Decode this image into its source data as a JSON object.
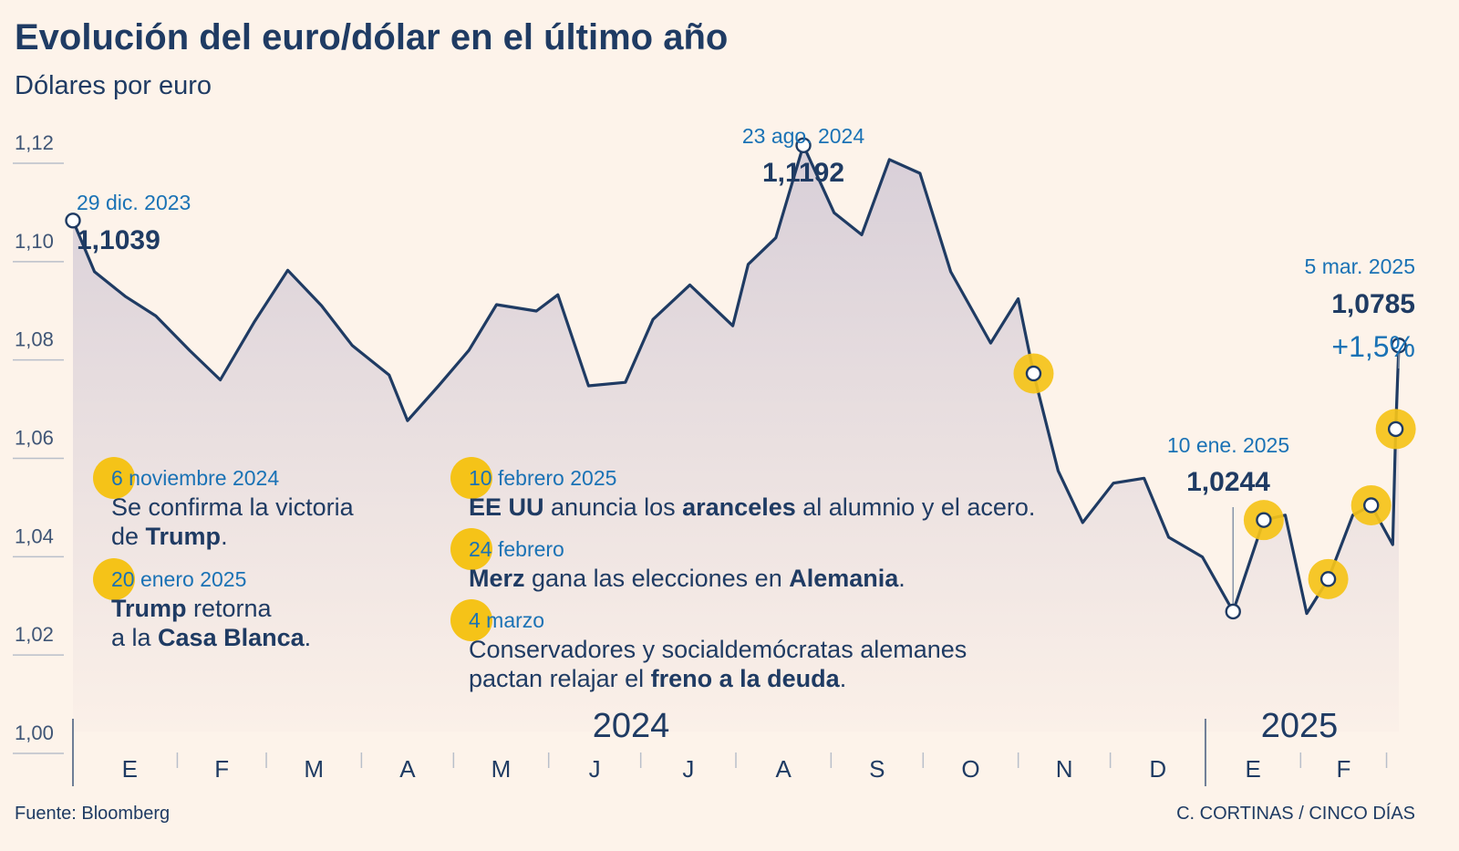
{
  "header": {
    "title": "Evolución del euro/dólar en el último año",
    "subtitle": "Dólares por euro"
  },
  "footer": {
    "source": "Fuente: Bloomberg",
    "credit": "C. CORTINAS / CINCO DÍAS"
  },
  "colors": {
    "background": "#fdf3ea",
    "line": "#1f3b63",
    "accent_blue": "#1a72b5",
    "highlight_yellow": "#f5c318"
  },
  "annotations": {
    "start": {
      "date": "29 dic. 2023",
      "value": "1,1039"
    },
    "max": {
      "date": "23 ago. 2024",
      "value": "1,1192"
    },
    "min": {
      "date": "10 ene. 2025",
      "value": "1,0244"
    },
    "last": {
      "date": "5 mar. 2025",
      "value": "1,0785",
      "change": "+1,5%"
    }
  },
  "events": [
    {
      "date": "6 noviembre 2024",
      "lines": [
        [
          {
            "t": "Se confirma la victoria",
            "b": false
          }
        ],
        [
          {
            "t": "de ",
            "b": false
          },
          {
            "t": "Trump",
            "b": true
          },
          {
            "t": ".",
            "b": false
          }
        ]
      ]
    },
    {
      "date": "20 enero 2025",
      "lines": [
        [
          {
            "t": "Trump",
            "b": true
          },
          {
            "t": " retorna",
            "b": false
          }
        ],
        [
          {
            "t": "a la ",
            "b": false
          },
          {
            "t": "Casa Blanca",
            "b": true
          },
          {
            "t": ".",
            "b": false
          }
        ]
      ]
    },
    {
      "date": "10 febrero 2025",
      "lines": [
        [
          {
            "t": "EE UU",
            "b": true
          },
          {
            "t": " anuncia los ",
            "b": false
          },
          {
            "t": "aranceles",
            "b": true
          },
          {
            "t": " al alumnio y el acero.",
            "b": false
          }
        ]
      ]
    },
    {
      "date": "24 febrero",
      "lines": [
        [
          {
            "t": "Merz",
            "b": true
          },
          {
            "t": " gana las elecciones en ",
            "b": false
          },
          {
            "t": "Alemania",
            "b": true
          },
          {
            "t": ".",
            "b": false
          }
        ]
      ]
    },
    {
      "date": "4 marzo",
      "lines": [
        [
          {
            "t": "Conservadores y socialdemócratas alemanes",
            "b": false
          }
        ],
        [
          {
            "t": "pactan relajar el ",
            "b": false
          },
          {
            "t": "freno a la deuda",
            "b": true
          },
          {
            "t": ".",
            "b": false
          }
        ]
      ]
    }
  ],
  "chart_data": {
    "type": "line",
    "title": "Evolución del euro/dólar en el último año",
    "ylabel": "Dólares por euro",
    "xlabel": "",
    "ylim": [
      1.0,
      1.12
    ],
    "y_ticks": [
      "1,12",
      "1,10",
      "1,08",
      "1,06",
      "1,04",
      "1,02",
      "1,00"
    ],
    "y_tick_values": [
      1.12,
      1.1,
      1.08,
      1.06,
      1.04,
      1.02,
      1.0
    ],
    "x_months": [
      "E",
      "F",
      "M",
      "A",
      "M",
      "J",
      "J",
      "A",
      "S",
      "O",
      "N",
      "D",
      "E",
      "F"
    ],
    "years": [
      "2024",
      "2025"
    ],
    "grid": false,
    "series": [
      {
        "x": [
          "2023-12-29",
          "2024-01-05",
          "2024-01-15",
          "2024-01-25",
          "2024-02-05",
          "2024-02-15",
          "2024-02-26",
          "2024-03-08",
          "2024-03-19",
          "2024-03-29",
          "2024-04-10",
          "2024-04-16",
          "2024-04-26",
          "2024-05-06",
          "2024-05-15",
          "2024-05-28",
          "2024-06-04",
          "2024-06-14",
          "2024-06-26",
          "2024-07-05",
          "2024-07-17",
          "2024-07-31",
          "2024-08-05",
          "2024-08-14",
          "2024-08-23",
          "2024-09-02",
          "2024-09-11",
          "2024-09-20",
          "2024-09-30",
          "2024-10-10",
          "2024-10-23",
          "2024-11-01",
          "2024-11-06",
          "2024-11-14",
          "2024-11-22",
          "2024-12-02",
          "2024-12-12",
          "2024-12-20",
          "2024-12-31",
          "2025-01-10",
          "2025-01-20",
          "2025-01-27",
          "2025-02-03",
          "2025-02-10",
          "2025-02-18",
          "2025-02-24",
          "2025-03-03",
          "2025-03-04",
          "2025-03-05"
        ],
        "values": [
          1.1039,
          1.0935,
          1.0885,
          1.0845,
          1.0775,
          1.0715,
          1.0832,
          1.0938,
          1.0866,
          1.0785,
          1.0725,
          1.0632,
          1.0702,
          1.0775,
          1.0868,
          1.0855,
          1.0888,
          1.0703,
          1.071,
          1.0838,
          1.0908,
          1.0825,
          1.095,
          1.1004,
          1.1192,
          1.1055,
          1.101,
          1.1163,
          1.1135,
          1.0935,
          1.079,
          1.088,
          1.0728,
          1.053,
          1.0425,
          1.0505,
          1.0515,
          1.0395,
          1.0355,
          1.0244,
          1.043,
          1.044,
          1.024,
          1.031,
          1.044,
          1.046,
          1.038,
          1.0615,
          1.0785
        ],
        "value_labels": [
          "1,1039",
          "",
          "",
          "",
          "",
          "",
          "",
          "",
          "",
          "",
          "",
          "",
          "",
          "",
          "",
          "",
          "",
          "",
          "",
          "",
          "",
          "",
          "",
          "",
          "1,1192",
          "",
          "",
          "",
          "",
          "",
          "",
          "",
          "",
          "",
          "",
          "",
          "",
          "",
          "",
          "1,0244",
          "",
          "",
          "",
          "",
          "",
          "",
          "",
          "",
          "1,0785"
        ]
      }
    ],
    "markers": [
      {
        "x": "2023-12-29",
        "value": 1.1039,
        "highlight": false
      },
      {
        "x": "2024-08-23",
        "value": 1.1192,
        "highlight": false
      },
      {
        "x": "2024-11-06",
        "value": 1.0728,
        "highlight": true
      },
      {
        "x": "2025-01-10",
        "value": 1.0244,
        "highlight": false
      },
      {
        "x": "2025-01-20",
        "value": 1.043,
        "highlight": true
      },
      {
        "x": "2025-02-10",
        "value": 1.031,
        "highlight": true
      },
      {
        "x": "2025-02-24",
        "value": 1.046,
        "highlight": true
      },
      {
        "x": "2025-03-04",
        "value": 1.0615,
        "highlight": true
      },
      {
        "x": "2025-03-05",
        "value": 1.0785,
        "highlight": false
      }
    ]
  }
}
